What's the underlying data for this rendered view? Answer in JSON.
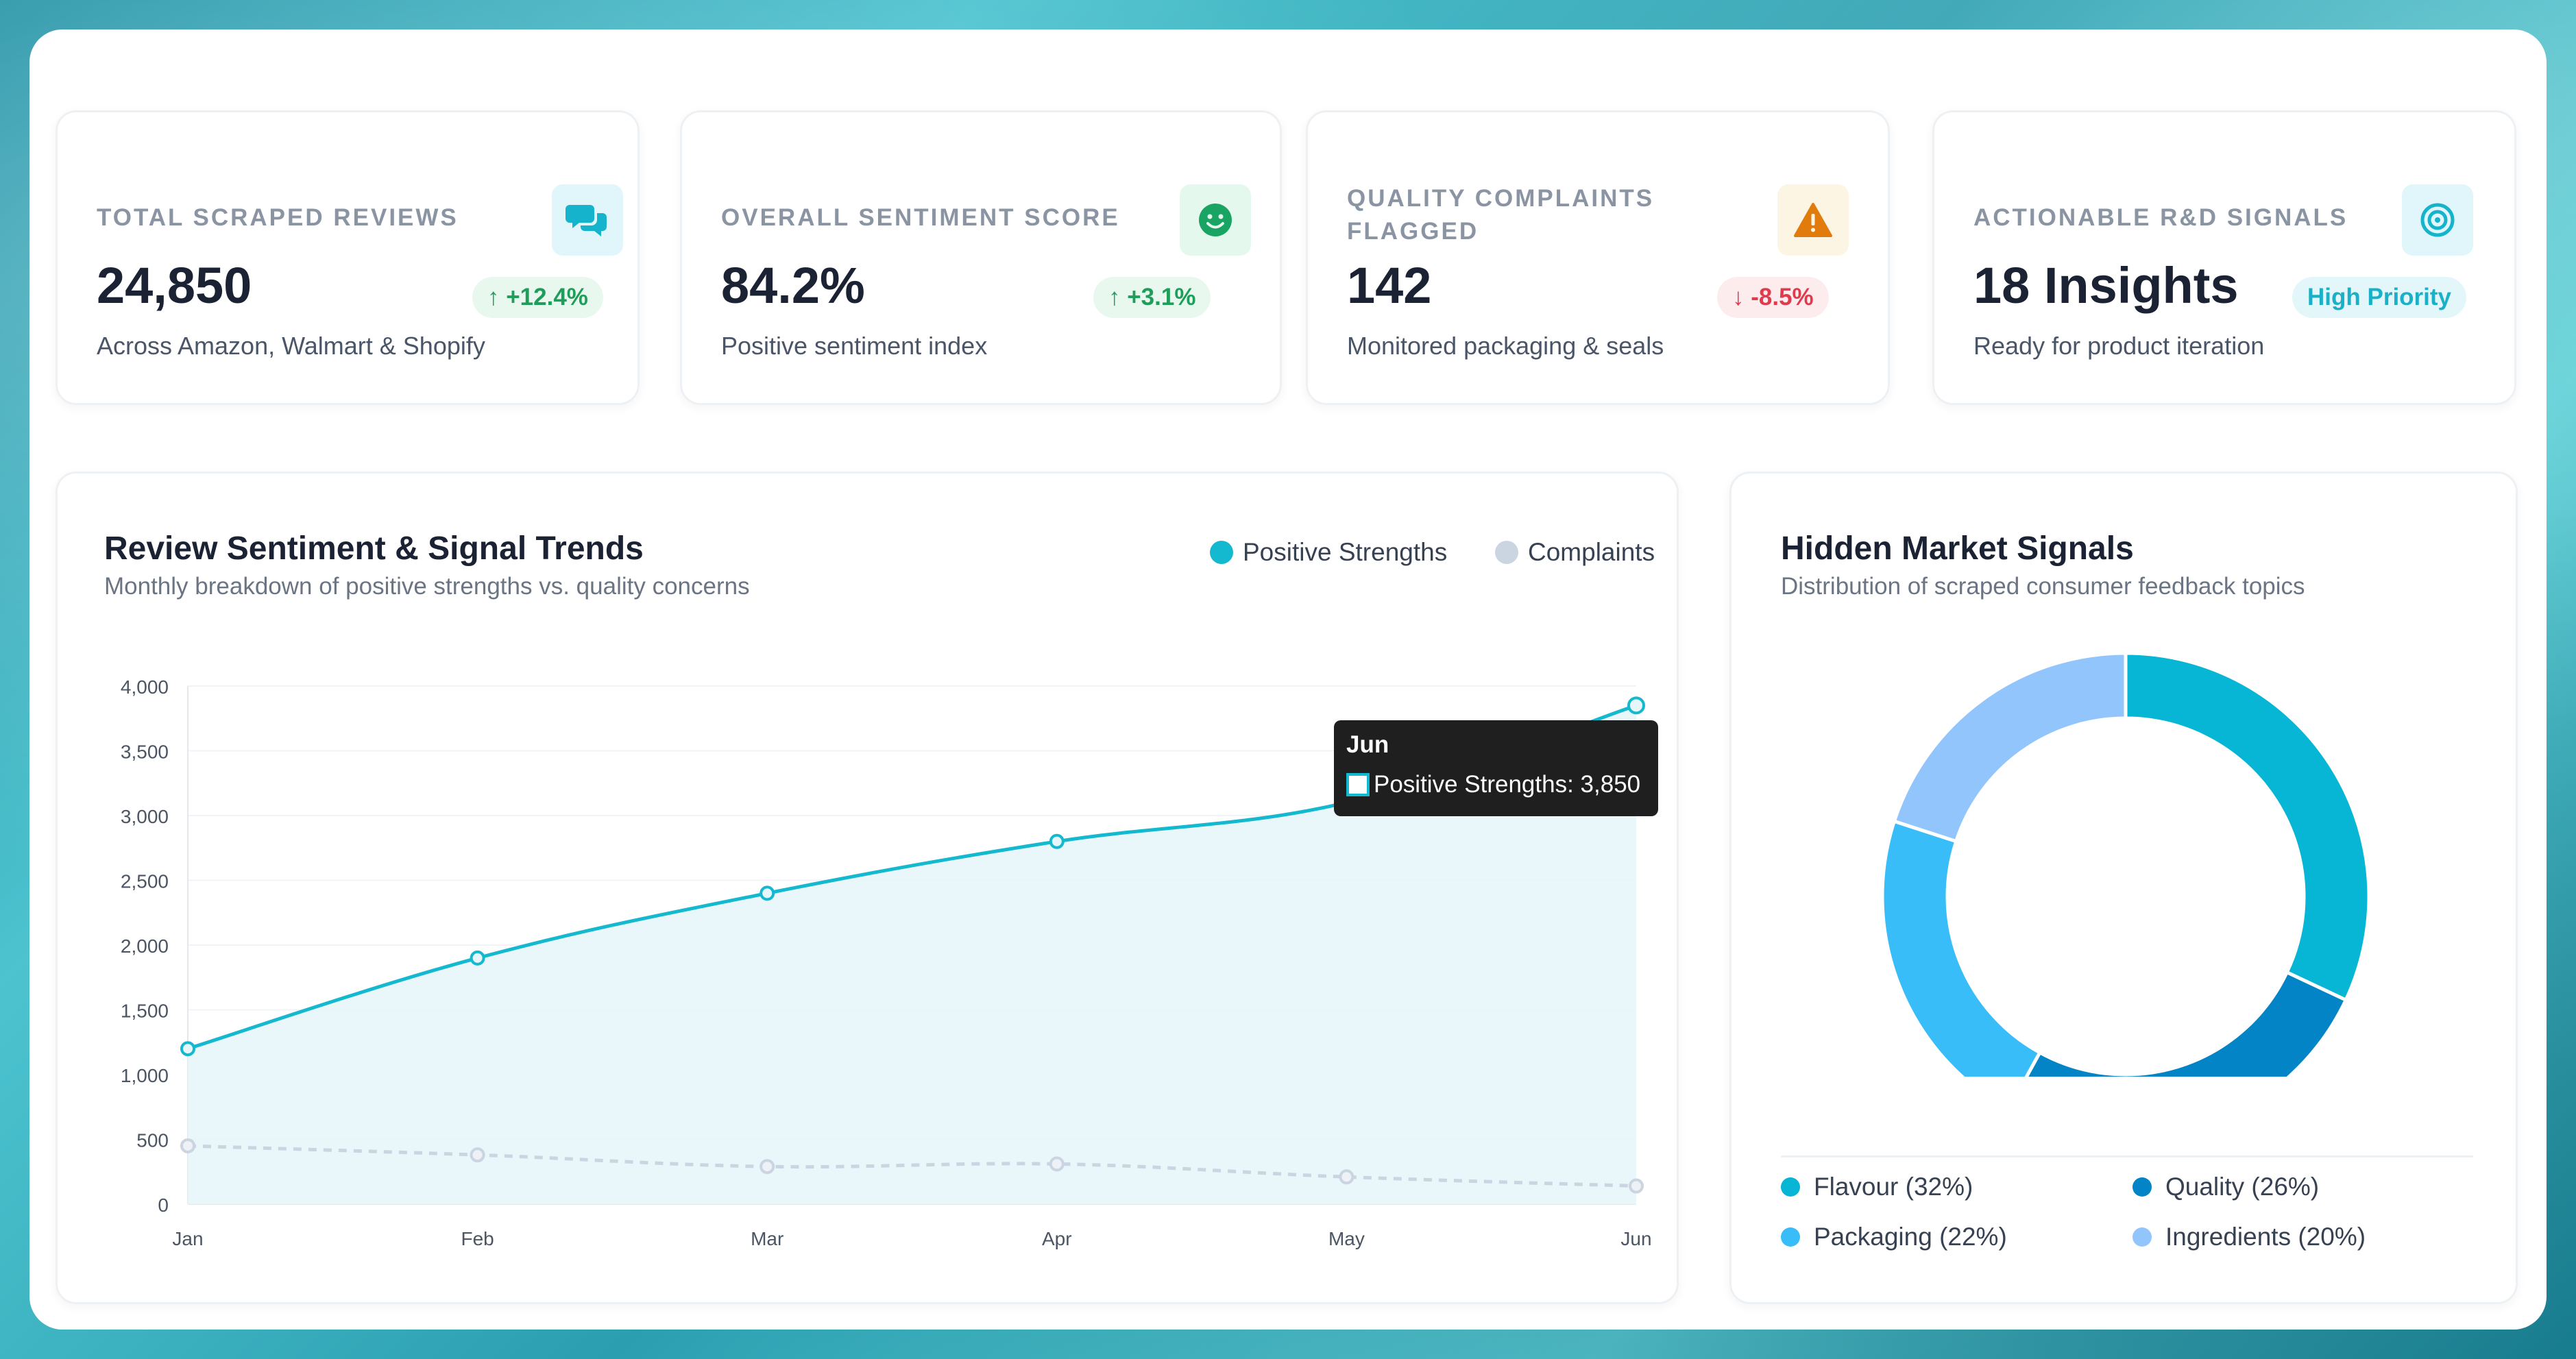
{
  "kpis": [
    {
      "label": "TOTAL SCRAPED REVIEWS",
      "value": "24,850",
      "change": "↑ +12.4%",
      "sub": "Across Amazon, Walmart & Shopify",
      "icon": "chat-bubbles-icon",
      "icon_color": "#16b3cc",
      "icon_bg": "#e0f6fa"
    },
    {
      "label": "OVERALL SENTIMENT SCORE",
      "value": "84.2%",
      "change": "↑ +3.1%",
      "sub": "Positive sentiment index",
      "icon": "smiley-icon",
      "icon_color": "#19a463",
      "icon_bg": "#e5f8ee"
    },
    {
      "label_line1": "QUALITY COMPLAINTS",
      "label_line2": "FLAGGED",
      "value": "142",
      "change": "↓ -8.5%",
      "sub": "Monitored packaging & seals",
      "icon": "warning-icon",
      "icon_color": "#e07b0c",
      "icon_bg": "#fdf5e3"
    },
    {
      "label": "ACTIONABLE R&D SIGNALS",
      "value": "18 Insights",
      "change": "High Priority",
      "sub": "Ready for product iteration",
      "icon": "target-icon",
      "icon_color": "#16b3cc",
      "icon_bg": "#e0f6fa"
    }
  ],
  "trend_panel": {
    "title": "Review Sentiment & Signal Trends",
    "subtitle": "Monthly breakdown of positive strengths vs. quality concerns",
    "legend_positive": "Positive Strengths",
    "legend_complaints": "Complaints",
    "tooltip_title": "Jun",
    "tooltip_text": "Positive Strengths: 3,850"
  },
  "signals_panel": {
    "title": "Hidden Market Signals",
    "subtitle": "Distribution of scraped consumer feedback topics",
    "legend": [
      {
        "label": "Flavour (32%)",
        "color": "#06b6d4"
      },
      {
        "label": "Quality (26%)",
        "color": "#0284c7"
      },
      {
        "label": "Packaging (22%)",
        "color": "#38bdf8"
      },
      {
        "label": "Ingredients (20%)",
        "color": "#93c5fd"
      }
    ]
  },
  "chart_data": [
    {
      "type": "line",
      "title": "Review Sentiment & Signal Trends",
      "x": [
        "Jan",
        "Feb",
        "Mar",
        "Apr",
        "May",
        "Jun"
      ],
      "series": [
        {
          "name": "Positive Strengths",
          "values": [
            1200,
            1900,
            2400,
            2800,
            3100,
            3850
          ],
          "color": "#14b8cf"
        },
        {
          "name": "Complaints",
          "values": [
            450,
            380,
            290,
            310,
            210,
            140
          ],
          "color": "#cbd5e1"
        }
      ],
      "yticks": [
        "0",
        "500",
        "1,000",
        "1,500",
        "2,000",
        "2,500",
        "3,000",
        "3,500",
        "4,000"
      ],
      "ylim": [
        0,
        4000
      ],
      "grid": true,
      "legend": "top-right"
    },
    {
      "type": "pie",
      "title": "Hidden Market Signals",
      "labels": [
        "Flavour",
        "Quality",
        "Packaging",
        "Ingredients"
      ],
      "values": [
        32,
        26,
        22,
        20
      ],
      "colors": [
        "#06b6d4",
        "#0284c7",
        "#38bdf8",
        "#93c5fd"
      ],
      "donut": true,
      "legend": "bottom"
    }
  ]
}
